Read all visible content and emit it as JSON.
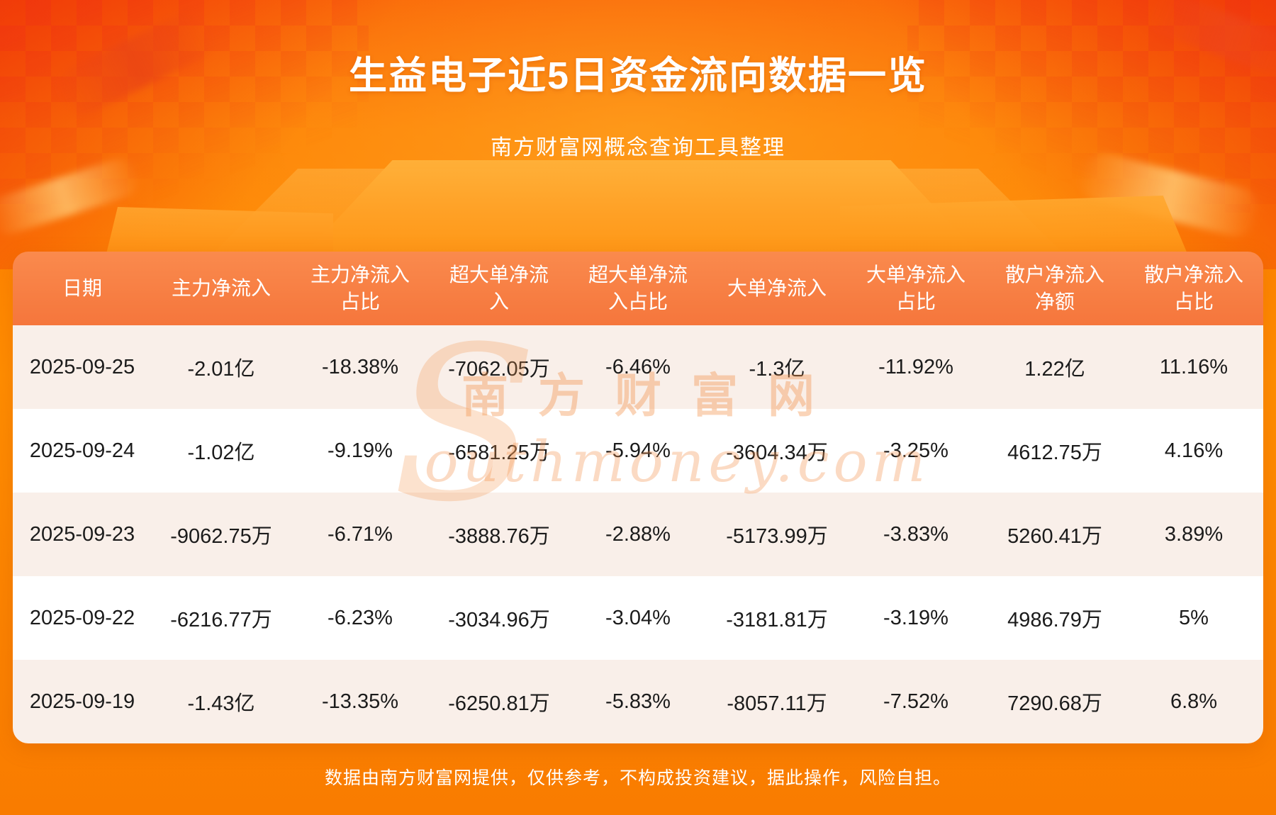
{
  "page": {
    "title": "生益电子近5日资金流向数据一览",
    "subtitle": "南方财富网概念查询工具整理",
    "footer": "数据由南方财富网提供，仅供参考，不构成投资建议，据此操作，风险自担。"
  },
  "watermark": {
    "initial": "S",
    "cn": "南方财富网",
    "en": "outhmoney.com"
  },
  "colors": {
    "background_orange": "#ff8800",
    "header_row_orange": "#f5763c",
    "row_alt_pink": "#f9efe9",
    "row_white": "#ffffff",
    "title_white": "#ffffff"
  },
  "chart_data": {
    "type": "table",
    "title": "生益电子近5日资金流向数据一览",
    "columns": [
      "日期",
      "主力净流入",
      "主力净流入占比",
      "超大单净流入",
      "超大单净流入占比",
      "大单净流入",
      "大单净流入占比",
      "散户净流入净额",
      "散户净流入占比"
    ],
    "rows": [
      [
        "2025-09-25",
        "-2.01亿",
        "-18.38%",
        "-7062.05万",
        "-6.46%",
        "-1.3亿",
        "-11.92%",
        "1.22亿",
        "11.16%"
      ],
      [
        "2025-09-24",
        "-1.02亿",
        "-9.19%",
        "-6581.25万",
        "-5.94%",
        "-3604.34万",
        "-3.25%",
        "4612.75万",
        "4.16%"
      ],
      [
        "2025-09-23",
        "-9062.75万",
        "-6.71%",
        "-3888.76万",
        "-2.88%",
        "-5173.99万",
        "-3.83%",
        "5260.41万",
        "3.89%"
      ],
      [
        "2025-09-22",
        "-6216.77万",
        "-6.23%",
        "-3034.96万",
        "-3.04%",
        "-3181.81万",
        "-3.19%",
        "4986.79万",
        "5%"
      ],
      [
        "2025-09-19",
        "-1.43亿",
        "-13.35%",
        "-6250.81万",
        "-5.83%",
        "-8057.11万",
        "-7.52%",
        "7290.68万",
        "6.8%"
      ]
    ]
  }
}
